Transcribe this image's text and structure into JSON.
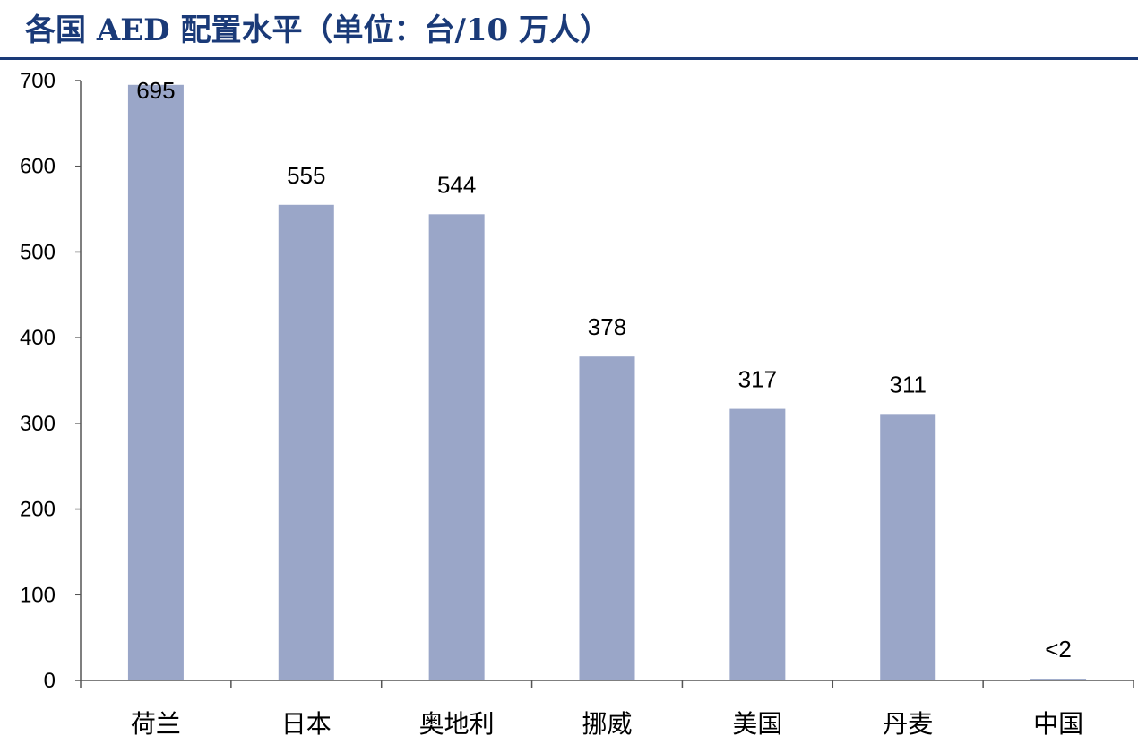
{
  "chart_data": {
    "type": "bar",
    "title": "各国 AED 配置水平（单位：台/10 万人）",
    "categories": [
      "荷兰",
      "日本",
      "奥地利",
      "挪威",
      "美国",
      "丹麦",
      "中国"
    ],
    "values": [
      695,
      555,
      544,
      378,
      317,
      311,
      2
    ],
    "data_labels": [
      "695",
      "555",
      "544",
      "378",
      "317",
      "311",
      "<2"
    ],
    "xlabel": "",
    "ylabel": "",
    "ylim": [
      0,
      700
    ],
    "yticks": [
      0,
      100,
      200,
      300,
      400,
      500,
      600,
      700
    ],
    "grid": false,
    "bar_color": "#9aa6c8",
    "title_color": "#1a3a78"
  }
}
